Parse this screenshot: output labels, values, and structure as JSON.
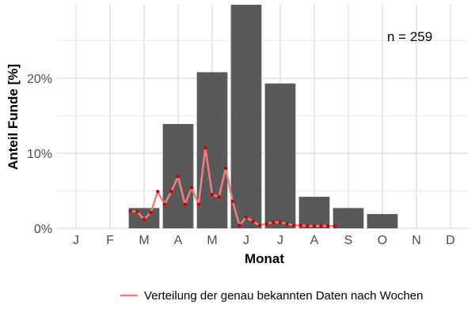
{
  "chart_data": {
    "type": "bar",
    "title": "",
    "xlabel": "Monat",
    "ylabel": "Anteil Funde [%]",
    "categories": [
      "J",
      "F",
      "M",
      "A",
      "M",
      "J",
      "J",
      "A",
      "S",
      "O",
      "N",
      "D"
    ],
    "values": [
      0,
      0,
      2.7,
      13.9,
      20.8,
      30.1,
      19.3,
      4.2,
      2.7,
      1.9,
      0,
      0
    ],
    "ylim": [
      0,
      30
    ],
    "yticks": [
      0,
      10,
      20
    ],
    "ytick_labels": [
      "0%",
      "10%",
      "20%"
    ],
    "grid": true,
    "bar_color": "#595959",
    "annotation": "n = 259",
    "line_series": {
      "name": "Verteilung der genau bekannten Daten nach Wochen",
      "color": "#f08080",
      "point_color": "#cc0000",
      "x": [
        2.6,
        2.8,
        3.0,
        3.2,
        3.4,
        3.6,
        3.8,
        4.0,
        4.2,
        4.4,
        4.6,
        4.8,
        5.0,
        5.2,
        5.4,
        5.6,
        5.8,
        6.0,
        6.2,
        6.4,
        6.6,
        6.8,
        7.0,
        7.2,
        7.4,
        7.6,
        7.8,
        8.0,
        8.2,
        8.4,
        8.6
      ],
      "y": [
        2.3,
        2.2,
        1.2,
        2.1,
        4.9,
        3.2,
        4.9,
        6.9,
        3.2,
        5.4,
        3.2,
        10.7,
        4.5,
        4.2,
        8.0,
        3.6,
        0.4,
        1.5,
        0.9,
        0.4,
        0.6,
        0.8,
        0.8,
        0.6,
        0.4,
        0.4,
        0.3,
        0.3,
        0.3,
        0.3,
        0.3
      ]
    },
    "legend_position": "bottom"
  }
}
